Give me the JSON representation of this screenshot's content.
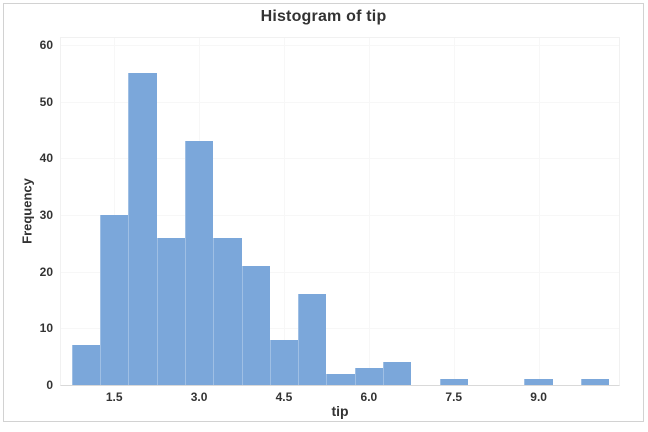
{
  "chart_data": {
    "type": "bar",
    "subtype": "histogram",
    "title": "Histogram of tip",
    "xlabel": "tip",
    "ylabel": "Frequency",
    "bin_width": 0.5,
    "bin_centers": [
      1.0,
      1.5,
      2.0,
      2.5,
      3.0,
      3.5,
      4.0,
      4.5,
      5.0,
      5.5,
      6.0,
      6.5,
      7.0,
      7.5,
      8.0,
      8.5,
      9.0,
      9.5,
      10.0
    ],
    "counts": [
      7,
      30,
      55,
      26,
      43,
      26,
      21,
      8,
      16,
      2,
      3,
      4,
      0,
      1,
      0,
      0,
      1,
      0,
      1
    ],
    "total_count": 244,
    "x_tick_labels": [
      "1.5",
      "3.0",
      "4.5",
      "6.0",
      "7.5",
      "9.0"
    ],
    "y_tick_labels": [
      "0",
      "10",
      "20",
      "30",
      "40",
      "50",
      "60"
    ],
    "xlim": [
      0.56,
      10.42
    ],
    "ylim": [
      0,
      61.2
    ],
    "grid": true,
    "legend_position": "none"
  },
  "colors": {
    "bar": "#7ba7da",
    "bar_divider": "rgba(255,255,255,0.28)",
    "gridline": "#f7f7f7",
    "axis_line": "#d9d9d9",
    "plot_border": "#f1f1f1",
    "figure_border": "#d2d2d2",
    "text": "#333333"
  }
}
